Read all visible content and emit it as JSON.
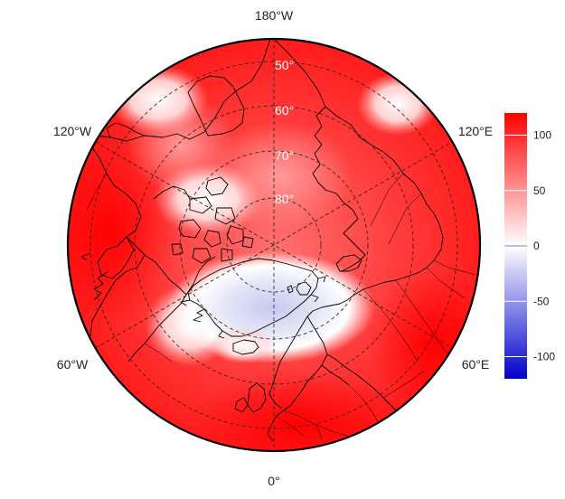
{
  "map": {
    "projection": "north-polar-stereographic",
    "center": "North Pole",
    "longitude_labels": [
      {
        "id": "lon-180w",
        "text": "180°W",
        "lon": 180
      },
      {
        "id": "lon-120w",
        "text": "120°W",
        "lon": -120
      },
      {
        "id": "lon-60w",
        "text": "60°W",
        "lon": -60
      },
      {
        "id": "lon-0",
        "text": "0°",
        "lon": 0
      },
      {
        "id": "lon-60e",
        "text": "60°E",
        "lon": 60
      },
      {
        "id": "lon-120e",
        "text": "120°E",
        "lon": 120
      }
    ],
    "latitude_labels": [
      {
        "id": "lat-50",
        "text": "50°",
        "lat": 50
      },
      {
        "id": "lat-60",
        "text": "60°",
        "lat": 60
      },
      {
        "id": "lat-70",
        "text": "70°",
        "lat": 70
      },
      {
        "id": "lat-80",
        "text": "80°",
        "lat": 80
      }
    ],
    "colors": {
      "high": "#ff0000",
      "mid": "#ffffff",
      "low": "#0000cc",
      "coastline": "#000000"
    }
  },
  "colorbar": {
    "min": -120,
    "max": 120,
    "ticks": [
      {
        "value": 100,
        "text": "100"
      },
      {
        "value": 50,
        "text": "50"
      },
      {
        "value": 0,
        "text": "0"
      },
      {
        "value": -50,
        "text": "-50"
      },
      {
        "value": -100,
        "text": "-100"
      }
    ]
  }
}
